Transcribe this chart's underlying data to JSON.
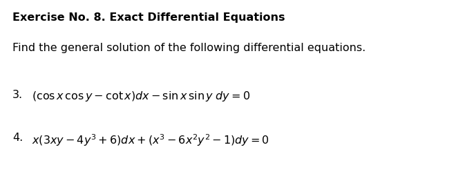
{
  "title": "Exercise No. 8. Exact Differential Equations",
  "subtitle": "Find the general solution of the following differential equations.",
  "eq3_num": "3.",
  "eq3_math": "$(\\cos x\\, \\cos y - \\cot x)dx - \\sin x\\, \\sin y\\; dy = 0$",
  "eq4_num": "4.",
  "eq4_math": "$x(3xy - 4y^3 + 6)dx + (x^3 - 6x^2y^2 - 1)dy = 0$",
  "bg_color": "#ffffff",
  "text_color": "#000000",
  "title_fontsize": 11.5,
  "body_fontsize": 11.5,
  "eq_fontsize": 11.5,
  "fig_width": 6.73,
  "fig_height": 2.65,
  "dpi": 100
}
